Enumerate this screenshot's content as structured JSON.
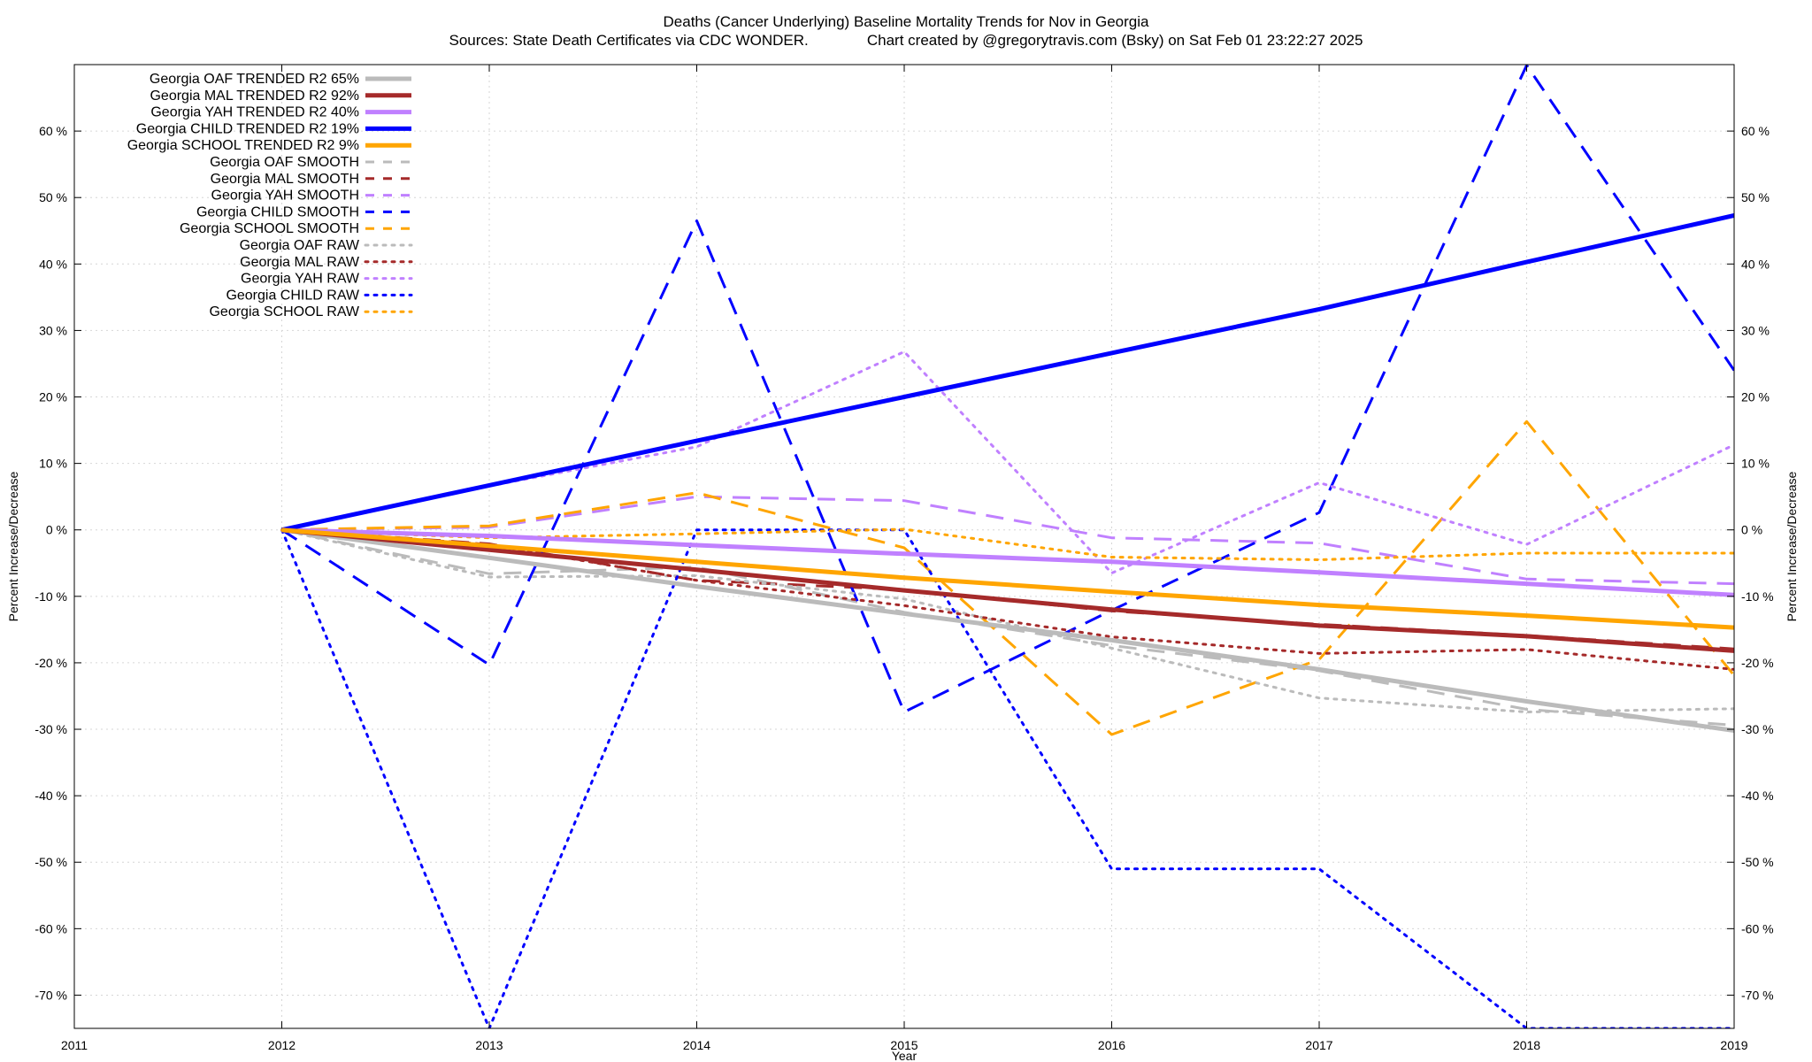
{
  "chart_data": {
    "type": "line",
    "title": "Deaths (Cancer Underlying)  Baseline Mortality Trends for Nov in Georgia",
    "subtitle": "Sources: State Death Certificates via CDC WONDER.              Chart created by @gregorytravis.com (Bsky) on Sat Feb 01 23:22:27 2025",
    "xlabel": "Year",
    "ylabel": "Percent Increase/Decrease",
    "y2label": "Percent Increase/Decrease",
    "xlim": [
      2011,
      2019
    ],
    "ylim": [
      -75,
      70
    ],
    "x_ticks": [
      "2011",
      "2012",
      "2013",
      "2014",
      "2015",
      "2016",
      "2017",
      "2018",
      "2019"
    ],
    "y_ticks": [
      "60 %",
      "50 %",
      "40 %",
      "30 %",
      "20 %",
      "10 %",
      "0 %",
      "-10 %",
      "-20 %",
      "-30 %",
      "-40 %",
      "-50 %",
      "-60 %",
      "-70 %"
    ],
    "grid": true,
    "legend_position": "top-left",
    "x": [
      2012,
      2013,
      2014,
      2015,
      2016,
      2017,
      2018,
      2019
    ],
    "series": [
      {
        "name": "Georgia OAF TRENDED R2  65%",
        "style": "solid",
        "color": "#bbbbbb",
        "values": [
          0,
          -4.2,
          -8.5,
          -12.6,
          -16.6,
          -21.0,
          -25.8,
          -30.2
        ]
      },
      {
        "name": "Georgia MAL TRENDED R2  92%",
        "style": "solid",
        "color": "#a52a2a",
        "values": [
          0,
          -3.0,
          -6.0,
          -9.1,
          -12.0,
          -14.4,
          -16.0,
          -18.2
        ]
      },
      {
        "name": "Georgia YAH TRENDED R2  40%",
        "style": "solid",
        "color": "#c080ff",
        "values": [
          0,
          -0.9,
          -2.3,
          -3.6,
          -4.8,
          -6.4,
          -8.1,
          -9.8
        ]
      },
      {
        "name": "Georgia CHILD TRENDED R2  19%",
        "style": "solid",
        "color": "#0000ff",
        "values": [
          0,
          6.7,
          13.4,
          20.0,
          26.6,
          33.2,
          40.3,
          47.3
        ]
      },
      {
        "name": "Georgia SCHOOL TRENDED R2  9%",
        "style": "solid",
        "color": "#ffa500",
        "values": [
          0,
          -2.4,
          -4.8,
          -7.2,
          -9.3,
          -11.3,
          -12.9,
          -14.7
        ]
      },
      {
        "name": "Georgia OAF SMOOTH",
        "style": "dash",
        "color": "#bbbbbb",
        "values": [
          0,
          -6.6,
          -5.6,
          -12.4,
          -17.4,
          -21.2,
          -27.0,
          -29.4
        ]
      },
      {
        "name": "Georgia MAL SMOOTH",
        "style": "dash",
        "color": "#a52a2a",
        "values": [
          0,
          -2.1,
          -7.6,
          -9.0,
          -12.2,
          -14.2,
          -15.9,
          -17.9
        ]
      },
      {
        "name": "Georgia YAH SMOOTH",
        "style": "dash",
        "color": "#c080ff",
        "values": [
          0,
          0.4,
          5.0,
          4.4,
          -1.2,
          -2.0,
          -7.4,
          -8.1
        ]
      },
      {
        "name": "Georgia CHILD SMOOTH",
        "style": "dash",
        "color": "#0000ff",
        "values": [
          0,
          -20.3,
          46.5,
          -27.4,
          -12.1,
          2.6,
          69.9,
          24.0
        ]
      },
      {
        "name": "Georgia SCHOOL SMOOTH",
        "style": "dash",
        "color": "#ffa500",
        "values": [
          0,
          0.6,
          5.6,
          -2.7,
          -30.8,
          -19.5,
          16.3,
          -21.9
        ]
      },
      {
        "name": "Georgia OAF RAW",
        "style": "dot",
        "color": "#bbbbbb",
        "values": [
          0,
          -7.1,
          -6.9,
          -10.4,
          -17.8,
          -25.3,
          -27.4,
          -26.9
        ]
      },
      {
        "name": "Georgia MAL RAW",
        "style": "dot",
        "color": "#a52a2a",
        "values": [
          0,
          -2.2,
          -7.6,
          -11.4,
          -16.1,
          -18.6,
          -18.0,
          -21.0
        ]
      },
      {
        "name": "Georgia YAH RAW",
        "style": "dot",
        "color": "#c080ff",
        "values": [
          0,
          6.6,
          12.5,
          26.8,
          -6.5,
          7.1,
          -2.2,
          12.8
        ]
      },
      {
        "name": "Georgia CHILD RAW",
        "style": "dot",
        "color": "#0000ff",
        "values": [
          0,
          -75.5,
          0,
          0,
          -51.0,
          -51.0,
          -75.5,
          -75.5
        ]
      },
      {
        "name": "Georgia SCHOOL RAW",
        "style": "dot",
        "color": "#ffa500",
        "values": [
          0,
          -1.2,
          -0.6,
          0.1,
          -4.1,
          -4.5,
          -3.5,
          -3.5
        ]
      }
    ]
  }
}
